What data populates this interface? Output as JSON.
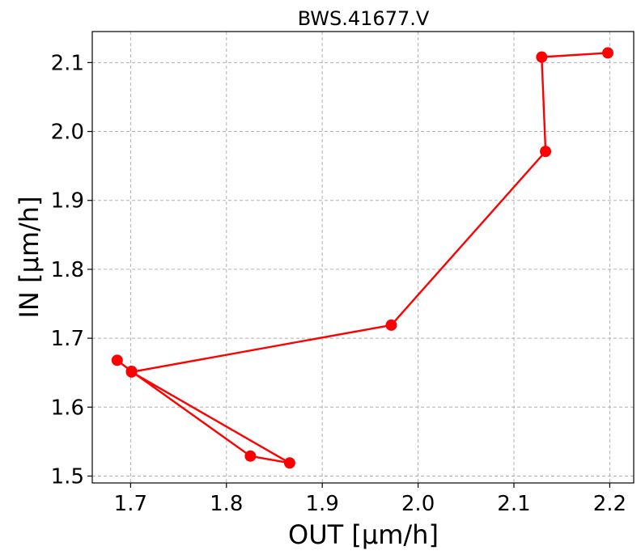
{
  "chart_data": {
    "type": "line",
    "title": "BWS.41677.V",
    "xlabel": "OUT [µm/h]",
    "ylabel": "IN [µm/h]",
    "xlim": [
      1.66,
      2.225
    ],
    "ylim": [
      1.49,
      2.145
    ],
    "xticks": [
      1.7,
      1.8,
      1.9,
      2.0,
      2.1,
      2.2
    ],
    "xtick_labels": [
      "1.7",
      "1.8",
      "1.9",
      "2.0",
      "2.1",
      "2.2"
    ],
    "yticks": [
      1.5,
      1.6,
      1.7,
      1.8,
      1.9,
      2.0,
      2.1
    ],
    "ytick_labels": [
      "1.5",
      "1.6",
      "1.7",
      "1.8",
      "1.9",
      "2.0",
      "2.1"
    ],
    "grid": true,
    "series": [
      {
        "color": "#ff0000",
        "marker": "circle",
        "points": [
          {
            "x": 2.198,
            "y": 2.114
          },
          {
            "x": 2.129,
            "y": 2.108
          },
          {
            "x": 2.133,
            "y": 1.971
          },
          {
            "x": 1.972,
            "y": 1.719
          },
          {
            "x": 1.701,
            "y": 1.651
          },
          {
            "x": 1.866,
            "y": 1.519
          },
          {
            "x": 1.825,
            "y": 1.529
          },
          {
            "x": 1.701,
            "y": 1.652
          },
          {
            "x": 1.686,
            "y": 1.668
          }
        ]
      }
    ]
  }
}
